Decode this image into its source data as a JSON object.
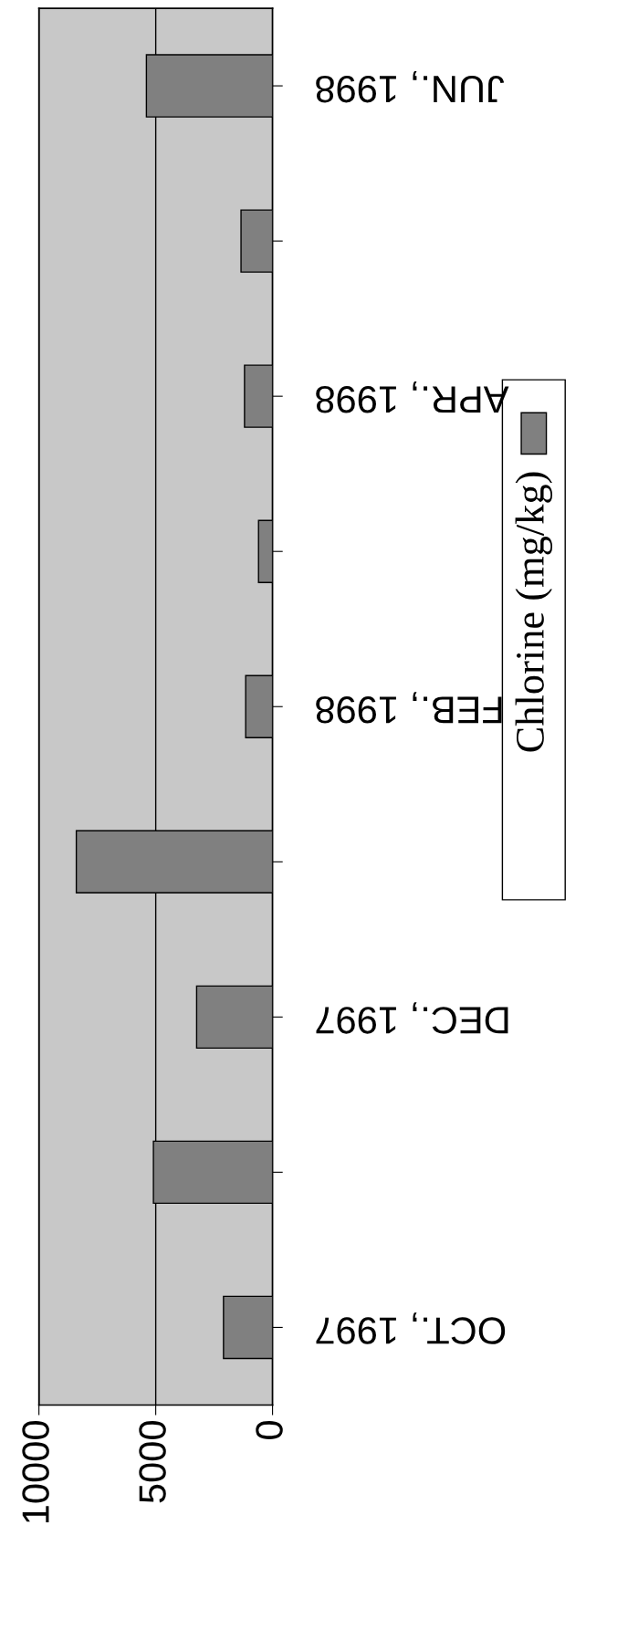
{
  "chart_data": {
    "type": "bar",
    "orientation": "horizontal",
    "categories": [
      "JUN., 1998",
      null,
      "APR., 1998",
      null,
      "FEB., 1998",
      null,
      "DEC., 1997",
      null,
      "OCT., 1997"
    ],
    "series": [
      {
        "name": "Chlorine (mg/kg)",
        "color": "#808080",
        "values": [
          5400,
          1350,
          1200,
          600,
          1150,
          8400,
          3250,
          5100,
          2100
        ]
      }
    ],
    "xlim": [
      10000,
      0
    ],
    "xticks": [
      10000,
      5000,
      0
    ],
    "grid": "x",
    "legend": "right"
  }
}
